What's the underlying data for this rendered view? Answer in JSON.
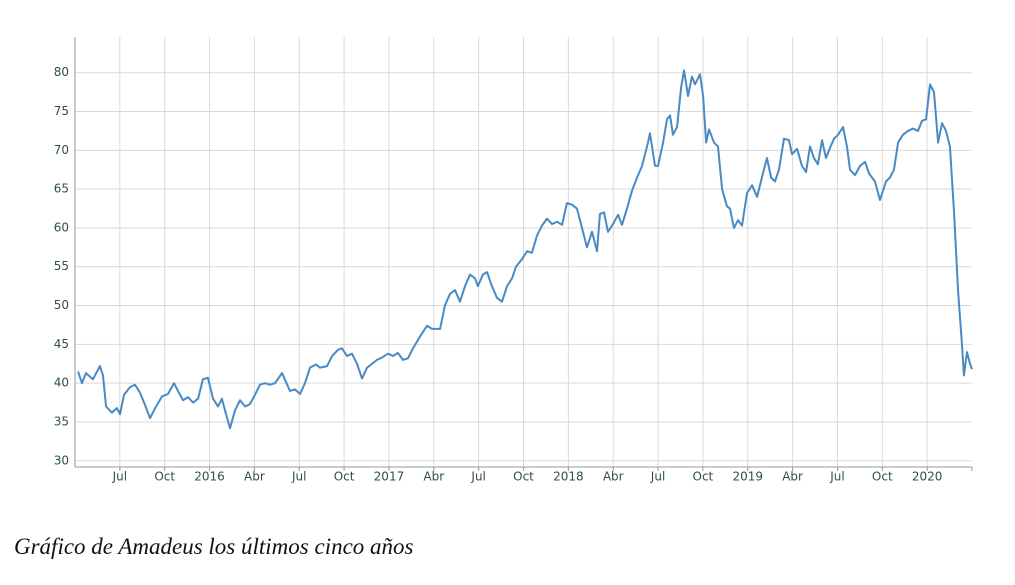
{
  "chart_data": {
    "type": "line",
    "caption": "Gráfico de Amadeus los últimos cinco años",
    "color": "#4a8ac4",
    "grid": true,
    "xlim": [
      2015.25,
      2020.25
    ],
    "ylim": [
      29.2,
      84.6
    ],
    "yticks": [
      30,
      35,
      40,
      45,
      50,
      55,
      60,
      65,
      70,
      75,
      80
    ],
    "xticks": [
      {
        "value": 2015.5,
        "label": "Jul"
      },
      {
        "value": 2015.75,
        "label": "Oct"
      },
      2016,
      {
        "value": 2016.25,
        "label": "Abr"
      },
      {
        "value": 2016.5,
        "label": "Jul"
      },
      {
        "value": 2016.75,
        "label": "Oct"
      },
      2017,
      {
        "value": 2017.25,
        "label": "Abr"
      },
      {
        "value": 2017.5,
        "label": "Jul"
      },
      {
        "value": 2017.75,
        "label": "Oct"
      },
      2018,
      {
        "value": 2018.25,
        "label": "Abr"
      },
      {
        "value": 2018.5,
        "label": "Jul"
      },
      {
        "value": 2018.75,
        "label": "Oct"
      },
      2019,
      {
        "value": 2019.25,
        "label": "Abr"
      },
      {
        "value": 2019.5,
        "label": "Jul"
      },
      {
        "value": 2019.75,
        "label": "Oct"
      },
      2020
    ],
    "x": [
      2015.267,
      2015.289,
      2015.311,
      2015.35,
      2015.389,
      2015.406,
      2015.423,
      2015.456,
      2015.484,
      2015.501,
      2015.523,
      2015.557,
      2015.584,
      2015.612,
      2015.64,
      2015.668,
      2015.702,
      2015.735,
      2015.768,
      2015.802,
      2015.824,
      2015.852,
      2015.88,
      2015.908,
      2015.936,
      2015.963,
      2015.991,
      2016.019,
      2016.047,
      2016.069,
      2016.092,
      2016.114,
      2016.142,
      2016.17,
      2016.198,
      2016.225,
      2016.253,
      2016.281,
      2016.309,
      2016.337,
      2016.365,
      2016.404,
      2016.448,
      2016.476,
      2016.504,
      2016.532,
      2016.56,
      2016.593,
      2016.616,
      2016.655,
      2016.683,
      2016.716,
      2016.738,
      2016.766,
      2016.794,
      2016.822,
      2016.85,
      2016.878,
      2016.906,
      2016.933,
      2016.961,
      2016.995,
      2017.023,
      2017.05,
      2017.078,
      2017.106,
      2017.134,
      2017.173,
      2017.212,
      2017.24,
      2017.285,
      2017.312,
      2017.34,
      2017.368,
      2017.396,
      2017.424,
      2017.452,
      2017.48,
      2017.496,
      2017.524,
      2017.547,
      2017.574,
      2017.602,
      2017.63,
      2017.658,
      2017.686,
      2017.708,
      2017.742,
      2017.77,
      2017.797,
      2017.825,
      2017.853,
      2017.881,
      2017.909,
      2017.937,
      2017.965,
      2017.992,
      2018.02,
      2018.048,
      2018.076,
      2018.104,
      2018.132,
      2018.16,
      2018.176,
      2018.199,
      2018.221,
      2018.249,
      2018.277,
      2018.299,
      2018.327,
      2018.355,
      2018.383,
      2018.411,
      2018.444,
      2018.455,
      2018.483,
      2018.5,
      2018.528,
      2018.55,
      2018.567,
      2018.583,
      2018.606,
      2018.628,
      2018.645,
      2018.667,
      2018.689,
      2018.706,
      2018.734,
      2018.751,
      2018.768,
      2018.784,
      2018.812,
      2018.834,
      2018.857,
      2018.884,
      2018.901,
      2018.923,
      2018.946,
      2018.968,
      2018.996,
      2019.024,
      2019.052,
      2019.079,
      2019.107,
      2019.13,
      2019.152,
      2019.174,
      2019.202,
      2019.23,
      2019.247,
      2019.275,
      2019.302,
      2019.325,
      2019.347,
      2019.369,
      2019.391,
      2019.414,
      2019.436,
      2019.458,
      2019.481,
      2019.503,
      2019.531,
      2019.553,
      2019.57,
      2019.598,
      2019.626,
      2019.654,
      2019.676,
      2019.709,
      2019.737,
      2019.771,
      2019.793,
      2019.815,
      2019.838,
      2019.865,
      2019.893,
      2019.921,
      2019.949,
      2019.971,
      2019.994,
      2020.016,
      2020.038,
      2020.061,
      2020.083,
      2020.105,
      2020.127,
      2020.15,
      2020.172,
      2020.194,
      2020.205,
      2020.222,
      2020.239,
      2020.25
    ],
    "values": [
      41.5,
      40,
      41.3,
      40.5,
      42.2,
      41,
      37,
      36.2,
      36.8,
      36,
      38.5,
      39.5,
      39.8,
      38.8,
      37.2,
      35.5,
      37,
      38.3,
      38.6,
      40,
      39,
      37.8,
      38.2,
      37.5,
      38,
      40.5,
      40.7,
      38,
      37,
      38,
      36,
      34.2,
      36.5,
      37.8,
      37,
      37.3,
      38.5,
      39.8,
      40,
      39.8,
      40,
      41.3,
      39,
      39.2,
      38.6,
      40,
      42,
      42.4,
      42,
      42.2,
      43.5,
      44.3,
      44.5,
      43.5,
      43.8,
      42.5,
      40.6,
      42,
      42.5,
      43,
      43.3,
      43.8,
      43.5,
      43.9,
      43,
      43.2,
      44.5,
      46,
      47.4,
      47,
      47,
      50,
      51.5,
      52,
      50.5,
      52.5,
      54,
      53.5,
      52.5,
      54,
      54.3,
      52.5,
      51,
      50.5,
      52.5,
      53.5,
      55,
      56,
      57,
      56.8,
      59,
      60.3,
      61.2,
      60.5,
      60.8,
      60.4,
      63.2,
      63,
      62.5,
      60,
      57.5,
      59.5,
      57,
      61.8,
      62,
      59.5,
      60.5,
      61.7,
      60.4,
      62.5,
      64.8,
      66.5,
      68,
      71,
      72.2,
      68,
      68,
      71,
      74,
      74.5,
      72,
      73,
      78,
      80.3,
      77,
      79.5,
      78.5,
      79.8,
      77,
      71,
      72.7,
      71,
      70.5,
      65,
      62.8,
      62.5,
      60,
      61,
      60.3,
      64.5,
      65.5,
      64,
      66.5,
      69,
      66.5,
      66,
      67.5,
      71.5,
      71.3,
      69.5,
      70.2,
      68,
      67.2,
      70.5,
      69,
      68.2,
      71.3,
      69,
      70.3,
      71.5,
      72,
      73,
      70.5,
      67.5,
      66.8,
      68,
      68.5,
      67,
      66,
      63.6,
      66,
      66.5,
      67.5,
      71,
      72,
      72.5,
      72.8,
      72.5,
      73.8,
      74,
      78.5,
      77.5,
      71,
      73.5,
      72.5,
      70.5,
      62,
      52,
      45,
      41,
      44,
      42.5,
      41.8
    ]
  }
}
